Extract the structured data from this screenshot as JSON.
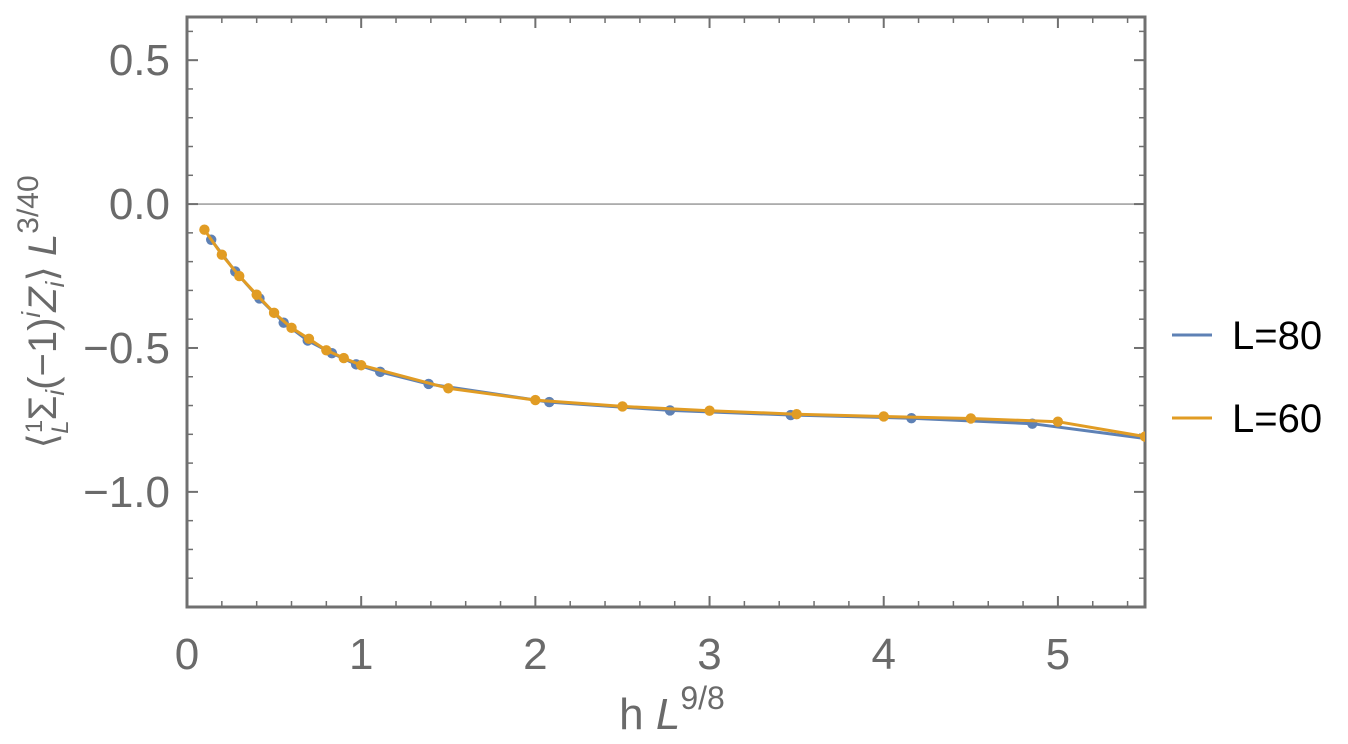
{
  "chart_data": {
    "type": "line",
    "title": "",
    "xlabel": {
      "base": "h ",
      "symbol": "L",
      "exponent": "9/8"
    },
    "ylabel": {
      "open": "⟨",
      "frac_num": "1",
      "frac_den": "L",
      "sum": "Σ",
      "sum_index": "i",
      "body": "(−1)",
      "body_exp": "i",
      "z": "Z",
      "z_index": "i",
      "close": "⟩",
      "symbol": "L",
      "exponent": "3/40"
    },
    "xlim": [
      0,
      5.5
    ],
    "ylim": [
      -1.4,
      0.65
    ],
    "x_ticks": [
      0,
      1,
      2,
      3,
      4,
      5
    ],
    "x_tick_labels": [
      "0",
      "1",
      "2",
      "3",
      "4",
      "5"
    ],
    "y_ticks": [
      0.5,
      0.0,
      -0.5,
      -1.0
    ],
    "y_tick_labels": [
      "0.5",
      "0.0",
      "−0.5",
      "−1.0"
    ],
    "grid": false,
    "zero_line": true,
    "legend_position": "right",
    "series": [
      {
        "name": "L=80",
        "color": "#5e81b5",
        "x": [
          0.139,
          0.277,
          0.416,
          0.555,
          0.693,
          0.832,
          0.971,
          1.109,
          1.387,
          2.08,
          2.773,
          3.466,
          4.159,
          4.853,
          5.546
        ],
        "y": [
          -0.124,
          -0.234,
          -0.328,
          -0.412,
          -0.474,
          -0.518,
          -0.557,
          -0.583,
          -0.625,
          -0.688,
          -0.717,
          -0.733,
          -0.744,
          -0.763,
          -0.818
        ]
      },
      {
        "name": "L=60",
        "color": "#e19c24",
        "x": [
          0.1,
          0.2,
          0.3,
          0.4,
          0.5,
          0.6,
          0.7,
          0.8,
          0.9,
          1.0,
          1.5,
          2.0,
          2.5,
          3.0,
          3.5,
          4.0,
          4.5,
          5.0,
          5.5
        ],
        "y": [
          -0.089,
          -0.176,
          -0.25,
          -0.315,
          -0.378,
          -0.43,
          -0.468,
          -0.508,
          -0.535,
          -0.56,
          -0.64,
          -0.681,
          -0.703,
          -0.718,
          -0.73,
          -0.738,
          -0.745,
          -0.756,
          -0.808
        ]
      }
    ]
  }
}
